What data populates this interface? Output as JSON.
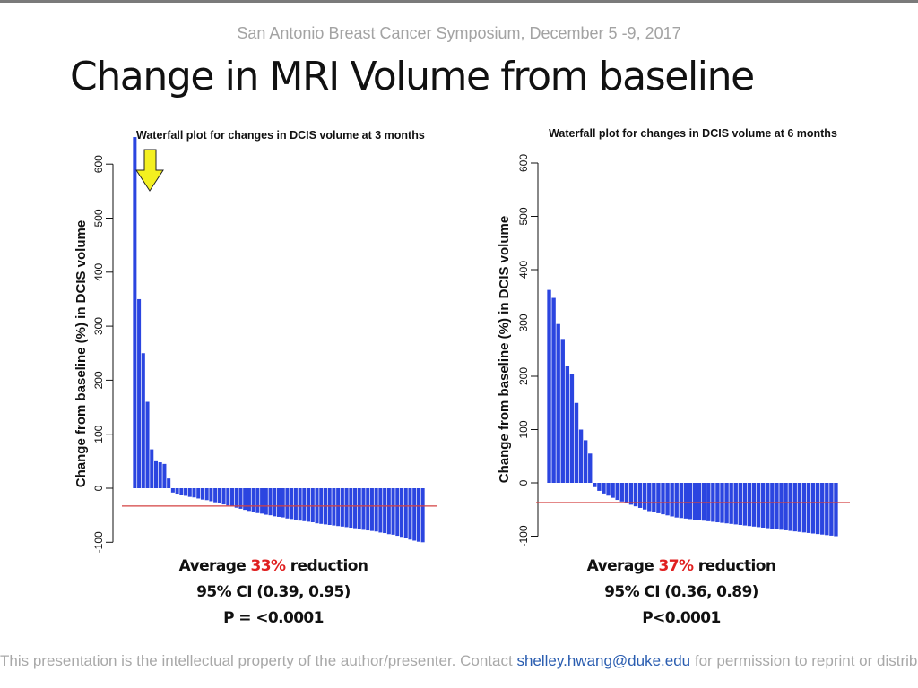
{
  "header": {
    "conference": "San Antonio Breast Cancer Symposium, December 5 -9, 2017",
    "title": "Change in MRI Volume from baseline"
  },
  "footer": {
    "text_before": "This presentation is the intellectual property of the author/presenter. Contact ",
    "email": "shelley.hwang@duke.edu",
    "text_after": " for permission to reprint or distribute."
  },
  "colors": {
    "bar": "#2b45e0",
    "reference_line": "#d44040",
    "arrow": "#f4f020"
  },
  "chart_data": [
    {
      "type": "bar",
      "title": "Waterfall plot for changes in DCIS volume at 3 months",
      "ylabel": "Change from baseline (%) in DCIS volume",
      "xlabel": "",
      "ylim": [
        -100,
        650
      ],
      "yticks": [
        -100,
        0,
        100,
        200,
        300,
        400,
        500,
        600
      ],
      "grid": false,
      "reference_line": -33,
      "annotation": "yellow-down-arrow",
      "values": [
        650,
        350,
        250,
        160,
        72,
        50,
        48,
        45,
        18,
        -8,
        -10,
        -12,
        -14,
        -16,
        -17,
        -19,
        -21,
        -22,
        -24,
        -26,
        -28,
        -30,
        -32,
        -34,
        -36,
        -38,
        -40,
        -42,
        -44,
        -46,
        -47,
        -49,
        -50,
        -52,
        -53,
        -54,
        -56,
        -57,
        -58,
        -60,
        -61,
        -62,
        -63,
        -65,
        -66,
        -67,
        -68,
        -69,
        -70,
        -71,
        -72,
        -73,
        -74,
        -76,
        -77,
        -78,
        -79,
        -80,
        -82,
        -83,
        -85,
        -86,
        -88,
        -90,
        -92,
        -95,
        -97,
        -99,
        -100
      ]
    },
    {
      "type": "bar",
      "title": "Waterfall plot for changes in DCIS volume at 6 months",
      "ylabel": "Change from baseline (%) in DCIS volume",
      "xlabel": "",
      "ylim": [
        -100,
        600
      ],
      "yticks": [
        -100,
        0,
        100,
        200,
        300,
        400,
        500,
        600
      ],
      "grid": false,
      "reference_line": -37,
      "values": [
        362,
        347,
        298,
        270,
        220,
        205,
        150,
        100,
        80,
        55,
        -8,
        -15,
        -20,
        -24,
        -28,
        -32,
        -35,
        -38,
        -41,
        -44,
        -47,
        -50,
        -53,
        -55,
        -57,
        -59,
        -61,
        -63,
        -65,
        -66,
        -67,
        -68,
        -69,
        -70,
        -71,
        -72,
        -73,
        -74,
        -75,
        -76,
        -77,
        -78,
        -79,
        -80,
        -81,
        -82,
        -83,
        -84,
        -85,
        -86,
        -87,
        -88,
        -89,
        -90,
        -91,
        -92,
        -93,
        -94,
        -95,
        -96,
        -97,
        -98,
        -99,
        -100
      ]
    }
  ],
  "stats": [
    {
      "prefix": "Average ",
      "percent": "33%",
      "suffix": " reduction",
      "ci": "95% CI (0.39, 0.95)",
      "p": "P = <0.0001"
    },
    {
      "prefix": "Average ",
      "percent": "37%",
      "suffix": " reduction",
      "ci": "95% CI (0.36, 0.89)",
      "p": "P<0.0001"
    }
  ]
}
